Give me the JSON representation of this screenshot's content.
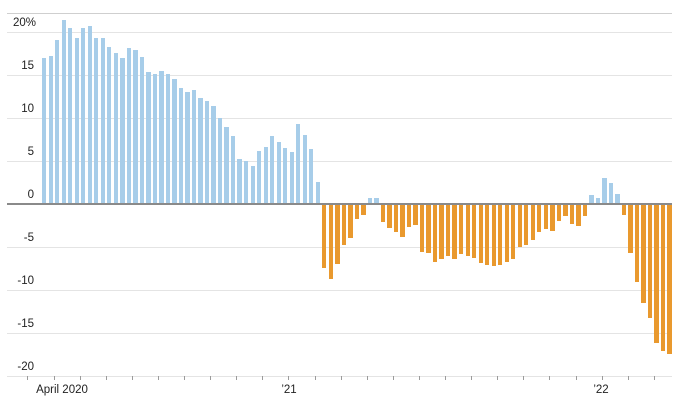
{
  "chart_data": {
    "type": "bar",
    "title": "",
    "unit": "percent",
    "frequency": "weekly",
    "description_of_visible_content": "Weekly percentage-change bar chart: positive weeks light blue, negative weeks orange",
    "x_axis": {
      "labels": [
        {
          "text": "April 2020",
          "x": 62
        },
        {
          "text": "’21",
          "x": 289
        },
        {
          "text": "’22",
          "x": 601
        }
      ]
    },
    "y_axis": {
      "ticks": [
        {
          "value": 20,
          "label": "20%"
        },
        {
          "value": 15,
          "label": "15"
        },
        {
          "value": 10,
          "label": "10"
        },
        {
          "value": 5,
          "label": "5"
        },
        {
          "value": 0,
          "label": "0"
        },
        {
          "value": -5,
          "label": "-5"
        },
        {
          "value": -10,
          "label": "-10"
        },
        {
          "value": -15,
          "label": "-15"
        },
        {
          "value": -20,
          "label": "-20"
        }
      ],
      "range": [
        -20,
        22
      ],
      "grid": true
    },
    "series": [
      {
        "name": "weekly-change-pct",
        "values": [
          16.9,
          17.2,
          19.0,
          21.4,
          20.4,
          19.3,
          20.4,
          20.6,
          19.3,
          19.2,
          18.2,
          17.5,
          16.9,
          18.1,
          17.9,
          17.0,
          15.3,
          15.1,
          15.4,
          15.1,
          14.5,
          13.4,
          13.0,
          13.2,
          12.3,
          11.9,
          11.4,
          10.0,
          8.9,
          7.9,
          5.2,
          4.9,
          4.4,
          6.1,
          6.6,
          7.8,
          7.1,
          6.5,
          6.0,
          9.2,
          8.0,
          6.4,
          2.5,
          -7.5,
          -8.8,
          -7.0,
          -4.8,
          -4.0,
          -1.8,
          -1.3,
          0.6,
          0.6,
          -2.1,
          -2.9,
          -3.3,
          -3.9,
          -2.7,
          -2.5,
          -5.6,
          -5.8,
          -6.8,
          -6.5,
          -6.1,
          -6.4,
          -5.9,
          -6.1,
          -6.3,
          -6.9,
          -7.2,
          -7.3,
          -7.1,
          -6.8,
          -6.4,
          -5.1,
          -4.8,
          -4.2,
          -3.3,
          -3.0,
          -3.2,
          -2.0,
          -1.4,
          -2.4,
          -2.6,
          -1.5,
          1.0,
          0.7,
          3.0,
          2.4,
          1.1,
          -1.3,
          -5.8,
          -9.1,
          -11.6,
          -13.3,
          -16.2,
          -17.2,
          -17.5
        ]
      }
    ],
    "colors": {
      "positive": "#A7CDE9",
      "negative": "#E9992E",
      "zero_axis": "#8a8a8a",
      "gridline": "#e4e4e4"
    },
    "legend": "none"
  }
}
